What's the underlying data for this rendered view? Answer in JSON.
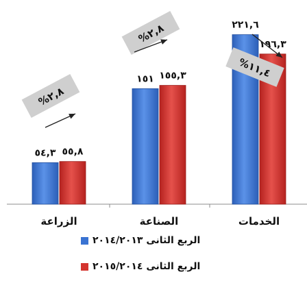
{
  "chart_data": {
    "type": "bar",
    "title": "",
    "xlabel": "",
    "ylabel": "",
    "ylim": [
      0,
      240
    ],
    "grid": false,
    "legend_position": "bottom",
    "categories": [
      "الزراعة",
      "الصناعة",
      "الخدمات"
    ],
    "series": [
      {
        "name": "الربع الثانى ٢٠١٤/٢٠١٣",
        "color": "#3a73d2",
        "values": [
          54.3,
          151,
          221.6
        ],
        "labels": [
          "٥٤,٣",
          "١٥١",
          "٢٢١,٦"
        ]
      },
      {
        "name": "الربع الثانى ٢٠١٥/٢٠١٤",
        "color": "#d4342f",
        "values": [
          55.8,
          155.3,
          196.3
        ],
        "labels": [
          "٥٥,٨",
          "١٥٥,٣",
          "١٩٦,٣"
        ]
      }
    ],
    "annotations": [
      {
        "category": "الزراعة",
        "text": "%٢,٨",
        "direction": "up"
      },
      {
        "category": "الصناعة",
        "text": "%٢,٨",
        "direction": "up"
      },
      {
        "category": "الخدمات",
        "text": "%١١,٤",
        "direction": "down"
      }
    ]
  }
}
